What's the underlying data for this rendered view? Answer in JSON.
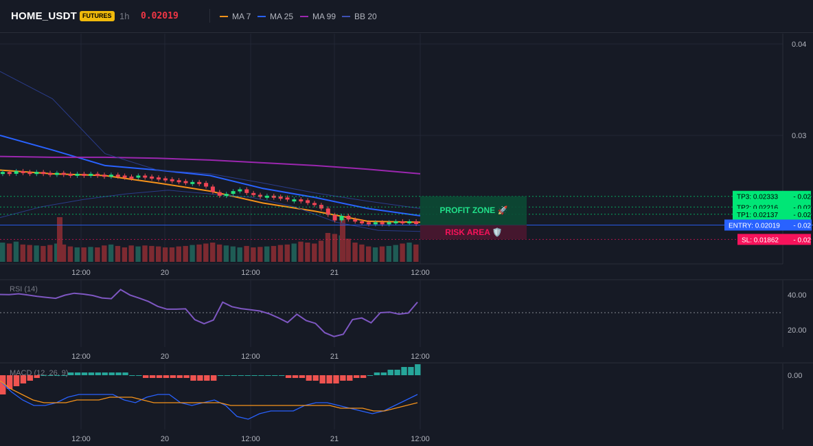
{
  "header": {
    "symbol": "HOME_USDT",
    "badge": "FUTURES",
    "timeframe": "1h",
    "price": "0.02019",
    "legend": [
      {
        "label": "MA 7",
        "color": "#f7931a"
      },
      {
        "label": "MA 25",
        "color": "#2962ff"
      },
      {
        "label": "MA 99",
        "color": "#9c27b0"
      },
      {
        "label": "BB 20",
        "color": "#1e3a8a"
      }
    ]
  },
  "chart_data": [
    {
      "type": "candlestick",
      "x_ticks": [
        "12:00",
        "20",
        "12:00",
        "21",
        "12:00"
      ],
      "y_ticks": [
        "0.04",
        "0.03"
      ],
      "ylim": [
        0.0152,
        0.0412
      ],
      "grid": true,
      "candles_close": [
        0.026,
        0.0258,
        0.0261,
        0.026,
        0.0259,
        0.026,
        0.0259,
        0.0258,
        0.0259,
        0.0258,
        0.0257,
        0.0258,
        0.0257,
        0.0258,
        0.0257,
        0.0256,
        0.0257,
        0.0256,
        0.0255,
        0.0254,
        0.0256,
        0.0255,
        0.0254,
        0.0253,
        0.0252,
        0.0251,
        0.025,
        0.0249,
        0.0249,
        0.0248,
        0.0244,
        0.0238,
        0.0234,
        0.0236,
        0.0239,
        0.0241,
        0.0237,
        0.0235,
        0.0234,
        0.0234,
        0.0233,
        0.0232,
        0.023,
        0.023,
        0.0229,
        0.0226,
        0.0224,
        0.022,
        0.0213,
        0.0207,
        0.0212,
        0.0208,
        0.0206,
        0.0205,
        0.0204,
        0.0205,
        0.0204,
        0.0205,
        0.0206,
        0.0205,
        0.0206,
        0.0203
      ],
      "series": [
        {
          "name": "MA 7",
          "values": [
            0.0262,
            0.0258,
            0.0256,
            0.0248,
            0.0239,
            0.0226,
            0.0217,
            0.0206,
            0.0205
          ]
        },
        {
          "name": "MA 25",
          "values": [
            0.03,
            0.0284,
            0.0267,
            0.0262,
            0.0256,
            0.0242,
            0.0232,
            0.022,
            0.0212
          ]
        },
        {
          "name": "MA 99",
          "values": [
            0.0277,
            0.0276,
            0.0276,
            0.0275,
            0.0273,
            0.027,
            0.0267,
            0.0263,
            0.0258
          ]
        },
        {
          "name": "BB 20",
          "values": [
            0.037,
            0.034,
            0.028,
            0.0262,
            0.0258,
            0.0248,
            0.0237,
            0.0228,
            0.022
          ]
        }
      ],
      "levels": [
        {
          "label": "TP3: 0.02333",
          "price": 0.02333,
          "color": "#00e676",
          "suffix": "- 0.02"
        },
        {
          "label": "TP2: 0.02216",
          "price": 0.02216,
          "color": "#00e676",
          "suffix": "- 0.02"
        },
        {
          "label": "TP1: 0.02137",
          "price": 0.02137,
          "color": "#00e676",
          "suffix": "- 0.02"
        },
        {
          "label": "ENTRY: 0.02019",
          "price": 0.02019,
          "color": "#2962ff",
          "suffix": "- 0.02"
        },
        {
          "label": "SL: 0.01862",
          "price": 0.01862,
          "color": "#f7135b",
          "suffix": "- 0.02"
        }
      ],
      "zones": {
        "profit": "PROFIT ZONE 🚀",
        "risk": "RISK AREA 🛡️"
      },
      "volume": [
        40,
        38,
        42,
        36,
        35,
        34,
        33,
        35,
        38,
        36,
        32,
        30,
        30,
        31,
        30,
        34,
        36,
        33,
        30,
        34,
        32,
        34,
        33,
        32,
        30,
        30,
        32,
        33,
        35,
        36,
        38,
        40,
        36,
        34,
        32,
        30,
        33,
        30,
        31,
        32,
        33,
        35,
        36,
        38,
        42,
        40,
        38,
        44,
        60,
        58,
        55,
        48,
        40,
        36,
        32,
        30,
        32,
        33,
        35,
        38,
        40,
        36
      ],
      "colors": {
        "up": "#26a69a",
        "down": "#ef5350"
      }
    },
    {
      "type": "line",
      "title": "RSI (14)",
      "y_ticks": [
        "40.00",
        "20.00"
      ],
      "values": [
        40.2,
        40.1,
        40.6,
        39.9,
        39.1,
        38.5,
        38.0,
        39.8,
        40.9,
        40.4,
        39.6,
        38.2,
        37.8,
        43.0,
        39.9,
        38.1,
        36.2,
        33.4,
        31.8,
        31.8,
        32.0,
        25.8,
        23.5,
        25.6,
        35.8,
        33.2,
        32.1,
        31.5,
        30.8,
        29.2,
        26.9,
        24.2,
        28.9,
        25.3,
        23.7,
        18.4,
        16.2,
        17.5,
        25.9,
        26.8,
        24.0,
        29.8,
        30.1,
        29.0,
        29.6,
        35.8
      ]
    },
    {
      "type": "bar",
      "title": "MACD (12, 26, 9)",
      "y_ticks": [
        "0.00"
      ],
      "histogram": [
        -7,
        -5,
        -4,
        -3,
        -2,
        -1,
        0,
        0,
        0,
        0,
        1,
        1,
        1,
        1,
        1,
        1,
        1,
        1,
        1,
        0,
        0,
        -1,
        -1,
        -1,
        -1,
        -1,
        -1,
        -1,
        -2,
        -2,
        -2,
        -2,
        0,
        0,
        0,
        0,
        0,
        0,
        0,
        0,
        0,
        0,
        -1,
        -1,
        -1,
        -2,
        -2,
        -3,
        -3,
        -3,
        -2,
        -2,
        -1,
        -1,
        0,
        1,
        1,
        2,
        2,
        3,
        3,
        4
      ],
      "macd_line": [
        -2,
        -6,
        -9,
        -11,
        -11,
        -10,
        -8,
        -7,
        -7,
        -7,
        -7,
        -9,
        -10,
        -8,
        -7,
        -7,
        -10,
        -11,
        -10,
        -9,
        -11,
        -15,
        -16,
        -14,
        -13,
        -13,
        -13,
        -11,
        -10,
        -10,
        -11,
        -12,
        -13,
        -14,
        -13,
        -11,
        -9,
        -7
      ],
      "signal_line": [
        -2,
        -5,
        -7,
        -9,
        -10,
        -10,
        -10,
        -9,
        -9,
        -9,
        -8,
        -8,
        -8,
        -9,
        -10,
        -10,
        -10,
        -10,
        -10,
        -10,
        -10,
        -11,
        -11,
        -11,
        -11,
        -11,
        -11,
        -11,
        -11,
        -11,
        -11,
        -12,
        -12,
        -12,
        -13,
        -13,
        -12,
        -11,
        -10
      ]
    }
  ]
}
